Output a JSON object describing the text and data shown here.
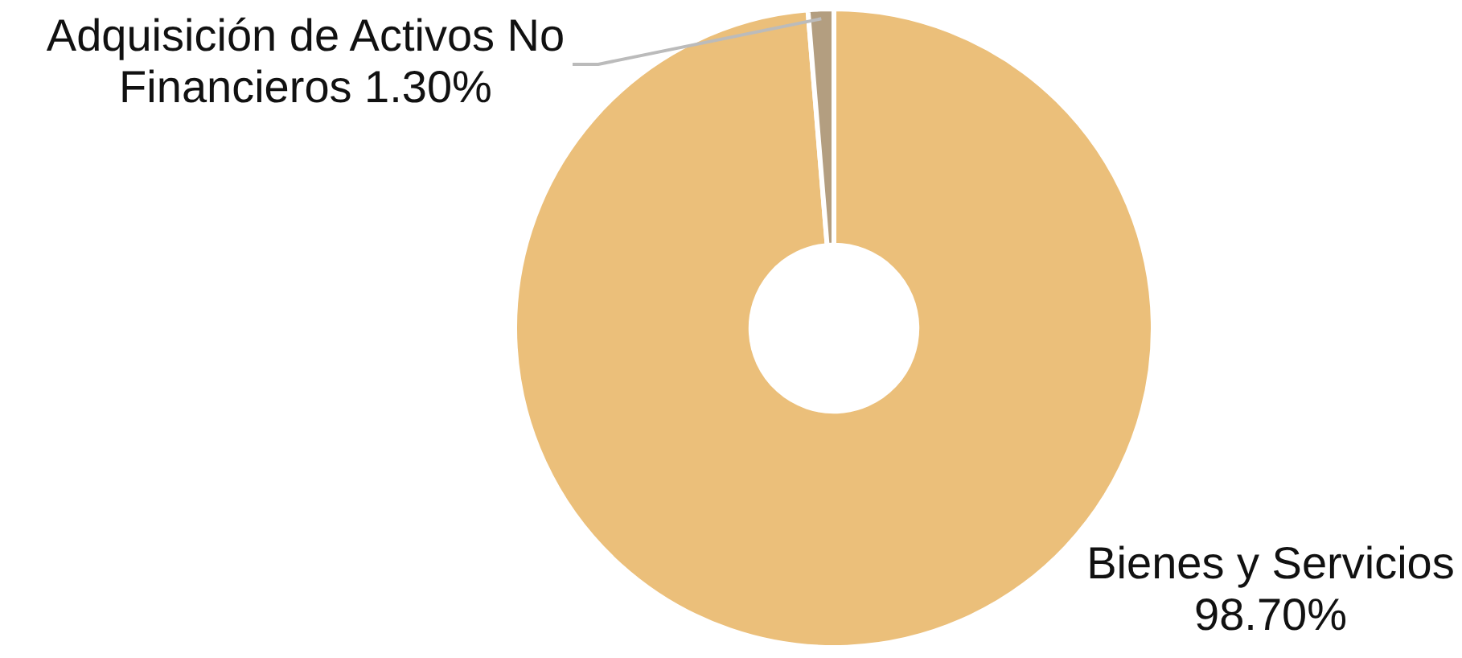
{
  "chart_data": {
    "type": "donut",
    "categories": [
      "Bienes y Servicios",
      "Adquisición de Activos No Financieros"
    ],
    "values": [
      98.7,
      1.3
    ],
    "colors": [
      "#ebbf7a",
      "#b39e80"
    ],
    "value_labels": [
      "98.70%",
      "1.30%"
    ],
    "legend": false
  }
}
